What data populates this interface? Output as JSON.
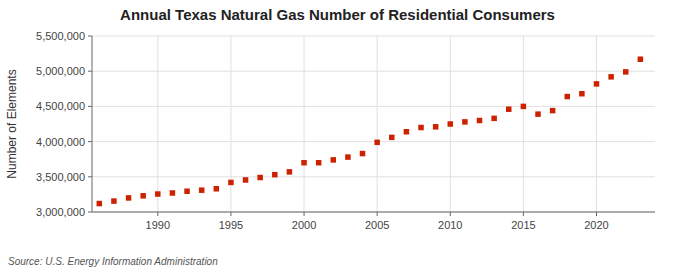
{
  "chart_data": {
    "type": "scatter",
    "title": "Annual Texas Natural Gas Number of Residential Consumers",
    "ylabel": "Number of Elements",
    "annotations": [
      "Source: U.S. Energy Information Administration"
    ],
    "x": [
      1986,
      1987,
      1988,
      1989,
      1990,
      1991,
      1992,
      1993,
      1994,
      1995,
      1996,
      1997,
      1998,
      1999,
      2000,
      2001,
      2002,
      2003,
      2004,
      2005,
      2006,
      2007,
      2008,
      2009,
      2010,
      2011,
      2012,
      2013,
      2014,
      2015,
      2016,
      2017,
      2018,
      2019,
      2020,
      2021,
      2022,
      2023
    ],
    "values": [
      3120000,
      3155000,
      3200000,
      3230000,
      3255000,
      3270000,
      3295000,
      3310000,
      3330000,
      3420000,
      3455000,
      3490000,
      3530000,
      3570000,
      3700000,
      3700000,
      3740000,
      3780000,
      3830000,
      3990000,
      4060000,
      4140000,
      4200000,
      4210000,
      4250000,
      4280000,
      4300000,
      4330000,
      4460000,
      4500000,
      4390000,
      4440000,
      4640000,
      4680000,
      4820000,
      4920000,
      4990000,
      5170000
    ],
    "color": "#cc2200",
    "marker": "square",
    "xlim": [
      1985.5,
      2024
    ],
    "ylim": [
      3000000,
      5500000
    ],
    "xticks": [
      1990,
      1995,
      2000,
      2005,
      2010,
      2015,
      2020
    ],
    "yticks": [
      {
        "value": 3000000,
        "label": "3,000,000"
      },
      {
        "value": 3500000,
        "label": "3,500,000"
      },
      {
        "value": 4000000,
        "label": "4,000,000"
      },
      {
        "value": 4500000,
        "label": "4,500,000"
      },
      {
        "value": 5000000,
        "label": "5,000,000"
      },
      {
        "value": 5500000,
        "label": "5,500,000"
      }
    ],
    "grid": true
  }
}
